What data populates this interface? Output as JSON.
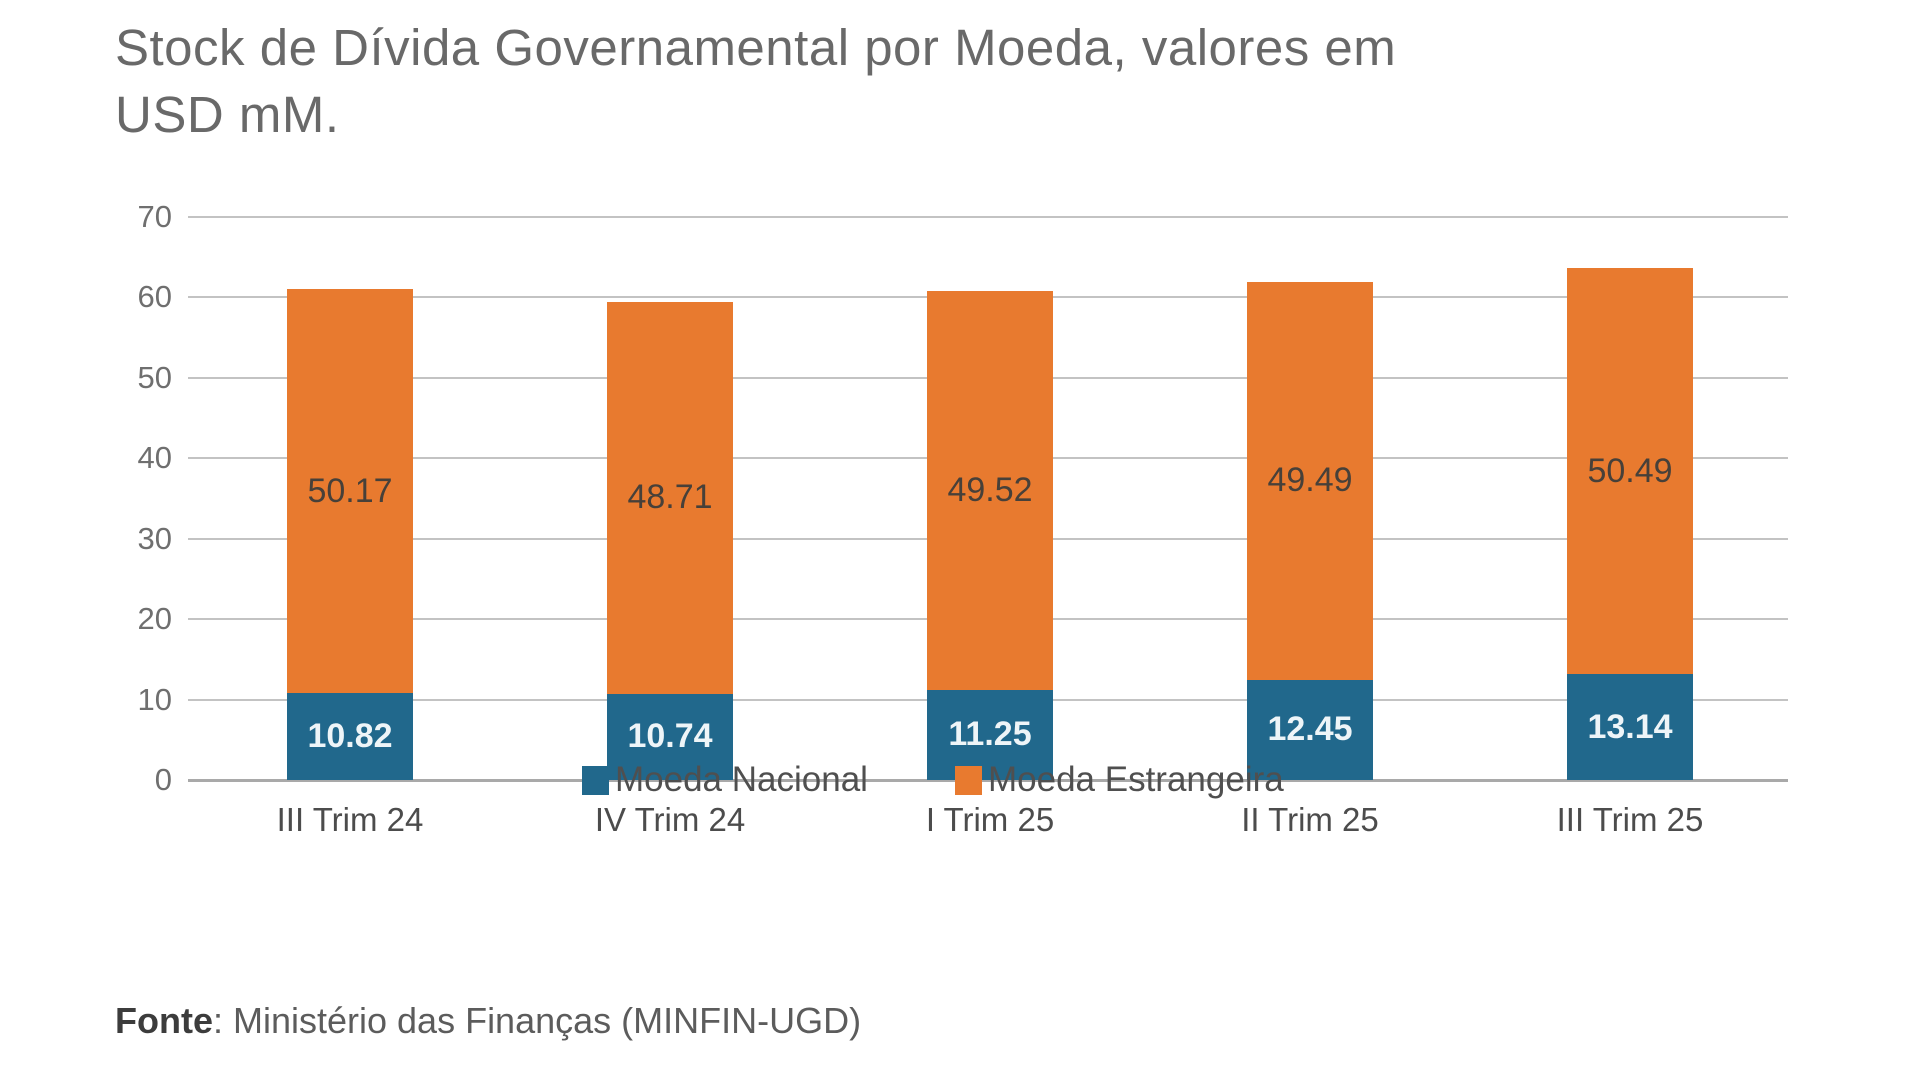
{
  "title": "Stock de Dívida Governamental por Moeda, valores em USD mM.",
  "footer": {
    "source_label": "Fonte",
    "source_text": ": Ministério das Finanças (MINFIN-UGD)"
  },
  "chart_data": {
    "type": "bar",
    "stacked": true,
    "title": "Stock de Dívida Governamental por Moeda, valores em USD mM.",
    "categories": [
      "III Trim 24",
      "IV Trim 24",
      "I Trim 25",
      "II Trim 25",
      "III Trim 25"
    ],
    "series": [
      {
        "name": "Moeda Nacional",
        "color": "#21688c",
        "values": [
          10.82,
          10.74,
          11.25,
          12.45,
          13.14
        ]
      },
      {
        "name": "Moeda Estrangeira",
        "color": "#e87a2f",
        "values": [
          50.17,
          48.71,
          49.52,
          49.49,
          50.49
        ]
      }
    ],
    "totals": [
      60.99,
      59.45,
      60.77,
      61.94,
      63.63
    ],
    "ylim": [
      0,
      70
    ],
    "ytick_step": 10,
    "yticks": [
      0,
      10,
      20,
      30,
      40,
      50,
      60,
      70
    ],
    "grid": true,
    "value_labels": true,
    "value_label_decimals": 2,
    "legend_position": "bottom-overlap",
    "source": "Fonte: Ministério das Finanças (MINFIN-UGD)",
    "colors": {
      "moeda_nacional": "#21688c",
      "moeda_estrangeira": "#e87a2f",
      "gridline": "#c3c3c3",
      "text": "#696969"
    }
  }
}
